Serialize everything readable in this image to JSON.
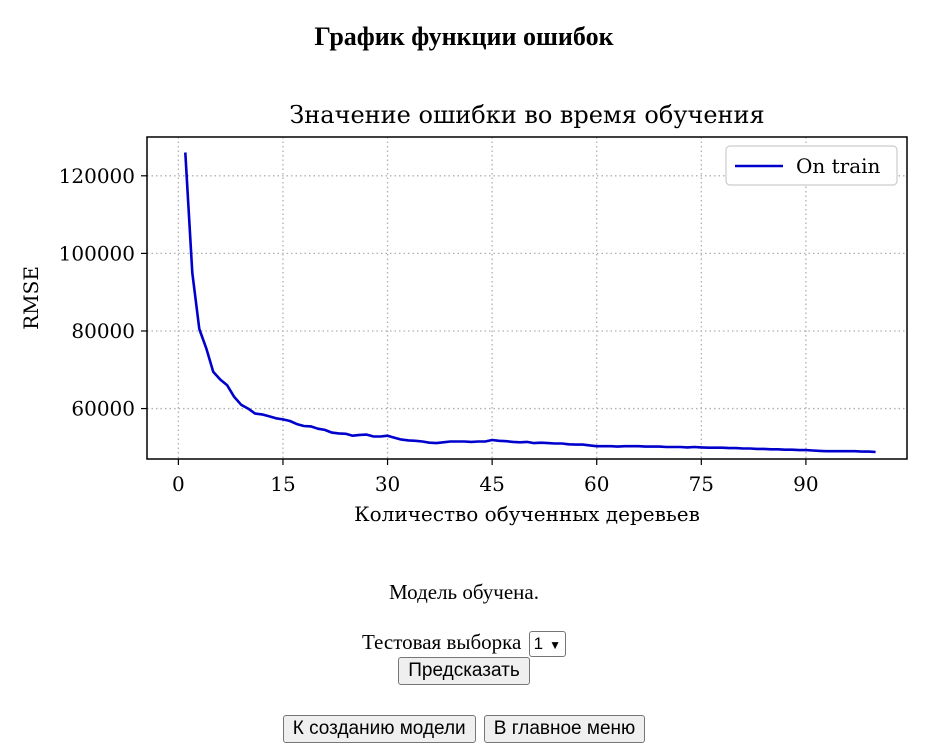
{
  "page": {
    "title": "График функции ошибок",
    "status_text": "Модель обучена.",
    "test_sample_label": "Тестовая выборка",
    "test_sample_value": "1",
    "predict_button": "Предсказать",
    "create_model_button": "К созданию модели",
    "main_menu_button": "В главное меню"
  },
  "chart_data": {
    "type": "line",
    "title": "Значение ошибки во время обучения",
    "xlabel": "Количество обученных деревьев",
    "ylabel": "RMSE",
    "xlim": [
      -4.5,
      104.5
    ],
    "ylim": [
      47000,
      130000
    ],
    "x_ticks": [
      0,
      15,
      30,
      45,
      60,
      75,
      90
    ],
    "y_ticks": [
      60000,
      80000,
      100000,
      120000
    ],
    "grid": true,
    "legend_position": "top-right",
    "series": [
      {
        "name": "On train",
        "color": "#0000cc",
        "x": [
          1,
          2,
          3,
          4,
          5,
          6,
          7,
          8,
          9,
          10,
          11,
          12,
          13,
          14,
          15,
          16,
          17,
          18,
          19,
          20,
          21,
          22,
          23,
          24,
          25,
          26,
          27,
          28,
          29,
          30,
          31,
          32,
          33,
          34,
          35,
          36,
          37,
          38,
          39,
          40,
          41,
          42,
          43,
          44,
          45,
          46,
          47,
          48,
          49,
          50,
          51,
          52,
          53,
          54,
          55,
          56,
          57,
          58,
          59,
          60,
          61,
          62,
          63,
          64,
          65,
          66,
          67,
          68,
          69,
          70,
          71,
          72,
          73,
          74,
          75,
          76,
          77,
          78,
          79,
          80,
          81,
          82,
          83,
          84,
          85,
          86,
          87,
          88,
          89,
          90,
          91,
          92,
          93,
          94,
          95,
          96,
          97,
          98,
          99,
          100
        ],
        "y": [
          126000,
          95000,
          80500,
          75500,
          69500,
          67500,
          66000,
          63000,
          61000,
          60000,
          58700,
          58500,
          58000,
          57500,
          57200,
          56800,
          56000,
          55500,
          55400,
          54800,
          54500,
          53800,
          53600,
          53500,
          53000,
          53200,
          53300,
          52800,
          52800,
          53000,
          52500,
          52000,
          51800,
          51700,
          51500,
          51200,
          51100,
          51300,
          51500,
          51500,
          51500,
          51400,
          51500,
          51500,
          51900,
          51700,
          51600,
          51400,
          51300,
          51400,
          51100,
          51200,
          51100,
          51000,
          51000,
          50800,
          50700,
          50700,
          50500,
          50300,
          50300,
          50300,
          50200,
          50300,
          50300,
          50300,
          50200,
          50200,
          50200,
          50100,
          50100,
          50100,
          50000,
          50100,
          50000,
          49900,
          49900,
          49900,
          49800,
          49800,
          49700,
          49700,
          49600,
          49600,
          49500,
          49500,
          49400,
          49400,
          49300,
          49300,
          49200,
          49100,
          49000,
          49000,
          49000,
          49000,
          49000,
          48900,
          48900,
          48800
        ]
      }
    ]
  }
}
